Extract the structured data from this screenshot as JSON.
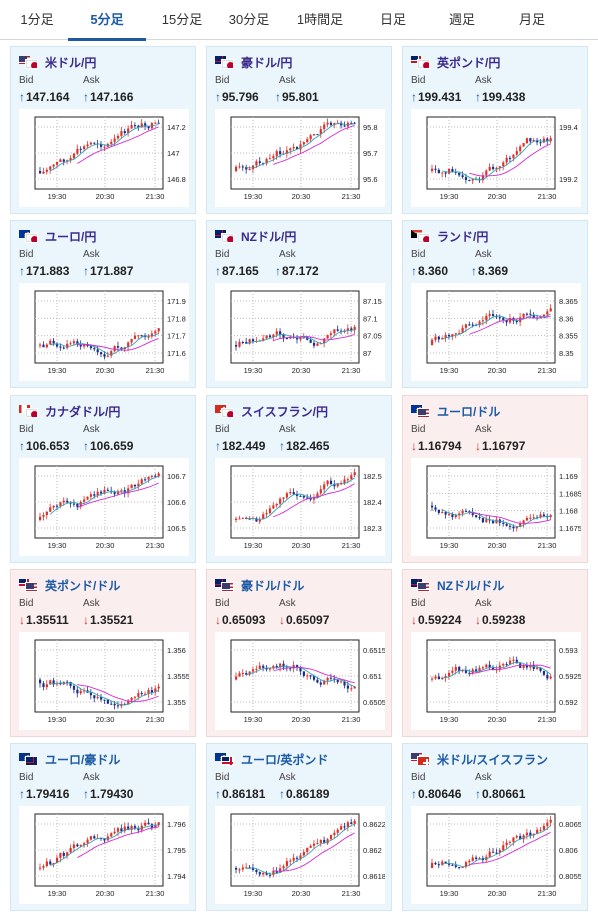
{
  "tabs": [
    {
      "label": "1分足",
      "active": false
    },
    {
      "label": "5分足",
      "active": true
    },
    {
      "label": "15分足",
      "active": false
    },
    {
      "label": "30分足",
      "active": false
    },
    {
      "label": "1時間足",
      "active": false
    },
    {
      "label": "日足",
      "active": false
    },
    {
      "label": "週足",
      "active": false
    },
    {
      "label": "月足",
      "active": false
    }
  ],
  "labels": {
    "bid": "Bid",
    "ask": "Ask"
  },
  "colors": {
    "up": "#1c5aa6",
    "down": "#c0392b",
    "candle_up": "#e0312b",
    "candle_down": "#1a2f8c",
    "ma_short": "#35a1b8",
    "ma_long": "#d42bd4"
  },
  "cards": [
    {
      "pair": "米ドル/円",
      "flag": "us-jp",
      "dir": "up",
      "bid": "147.164",
      "ask": "147.166",
      "chart": {
        "y_ticks": [
          "147.2",
          "147",
          "146.8"
        ],
        "x_ticks": [
          "19:30",
          "20:30",
          "21:30"
        ]
      }
    },
    {
      "pair": "豪ドル/円",
      "flag": "au-jp",
      "dir": "up",
      "bid": "95.796",
      "ask": "95.801",
      "chart": {
        "y_ticks": [
          "95.8",
          "95.7",
          "95.6"
        ],
        "x_ticks": [
          "19:30",
          "20:30",
          "21:30"
        ]
      }
    },
    {
      "pair": "英ポンド/円",
      "flag": "gb-jp",
      "dir": "up",
      "bid": "199.431",
      "ask": "199.438",
      "chart": {
        "y_ticks": [
          "199.4",
          "199.2"
        ],
        "x_ticks": [
          "19:30",
          "20:30",
          "21:30"
        ]
      }
    },
    {
      "pair": "ユーロ/円",
      "flag": "eu-jp",
      "dir": "up",
      "bid": "171.883",
      "ask": "171.887",
      "chart": {
        "y_ticks": [
          "171.9",
          "171.8",
          "171.7",
          "171.6"
        ],
        "x_ticks": [
          "19:30",
          "20:30",
          "21:30"
        ]
      }
    },
    {
      "pair": "NZドル/円",
      "flag": "nz-jp",
      "dir": "up",
      "bid": "87.165",
      "ask": "87.172",
      "chart": {
        "y_ticks": [
          "87.15",
          "87.1",
          "87.05",
          "87"
        ],
        "x_ticks": [
          "19:30",
          "20:30",
          "21:30"
        ]
      }
    },
    {
      "pair": "ランド/円",
      "flag": "za-jp",
      "dir": "up",
      "bid": "8.360",
      "ask": "8.369",
      "chart": {
        "y_ticks": [
          "8.365",
          "8.36",
          "8.355",
          "8.35"
        ],
        "x_ticks": [
          "19:30",
          "20:30",
          "21:30"
        ]
      }
    },
    {
      "pair": "カナダドル/円",
      "flag": "ca-jp",
      "dir": "up",
      "bid": "106.653",
      "ask": "106.659",
      "chart": {
        "y_ticks": [
          "106.7",
          "106.6",
          "106.5"
        ],
        "x_ticks": [
          "19:30",
          "20:30",
          "21:30"
        ]
      }
    },
    {
      "pair": "スイスフラン/円",
      "flag": "ch-jp",
      "dir": "up",
      "bid": "182.449",
      "ask": "182.465",
      "chart": {
        "y_ticks": [
          "182.5",
          "182.4",
          "182.3"
        ],
        "x_ticks": [
          "19:30",
          "20:30",
          "21:30"
        ]
      }
    },
    {
      "pair": "ユーロ/ドル",
      "flag": "eu-us",
      "dir": "down",
      "bid": "1.16794",
      "ask": "1.16797",
      "chart": {
        "y_ticks": [
          "1.169",
          "1.1685",
          "1.168",
          "1.1675"
        ],
        "x_ticks": [
          "19:30",
          "20:30",
          "21:30"
        ]
      }
    },
    {
      "pair": "英ポンド/ドル",
      "flag": "gb-us",
      "dir": "down",
      "bid": "1.35511",
      "ask": "1.35521",
      "chart": {
        "y_ticks": [
          "1.356",
          "1.3555",
          "1.355"
        ],
        "x_ticks": [
          "19:30",
          "20:30",
          "21:30"
        ]
      }
    },
    {
      "pair": "豪ドル/ドル",
      "flag": "au-us",
      "dir": "down",
      "bid": "0.65093",
      "ask": "0.65097",
      "chart": {
        "y_ticks": [
          "0.6515",
          "0.651",
          "0.6505"
        ],
        "x_ticks": [
          "19:30",
          "20:30",
          "21:30"
        ]
      }
    },
    {
      "pair": "NZドル/ドル",
      "flag": "nz-us",
      "dir": "down",
      "bid": "0.59224",
      "ask": "0.59238",
      "chart": {
        "y_ticks": [
          "0.593",
          "0.5925",
          "0.592"
        ],
        "x_ticks": [
          "19:30",
          "20:30",
          "21:30"
        ]
      }
    },
    {
      "pair": "ユーロ/豪ドル",
      "flag": "eu-au",
      "dir": "up",
      "bid": "1.79416",
      "ask": "1.79430",
      "chart": {
        "y_ticks": [
          "1.796",
          "1.795",
          "1.794"
        ],
        "x_ticks": [
          "19:30",
          "20:30",
          "21:30"
        ]
      }
    },
    {
      "pair": "ユーロ/英ポンド",
      "flag": "eu-gb",
      "dir": "up",
      "bid": "0.86181",
      "ask": "0.86189",
      "chart": {
        "y_ticks": [
          "0.8622",
          "0.862",
          "0.8618"
        ],
        "x_ticks": [
          "19:30",
          "20:30",
          "21:30"
        ]
      }
    },
    {
      "pair": "米ドル/スイスフラン",
      "flag": "us-ch",
      "dir": "up",
      "bid": "0.80646",
      "ask": "0.80661",
      "chart": {
        "y_ticks": [
          "0.8065",
          "0.806",
          "0.8055"
        ],
        "x_ticks": [
          "19:30",
          "20:30",
          "21:30"
        ]
      }
    }
  ]
}
